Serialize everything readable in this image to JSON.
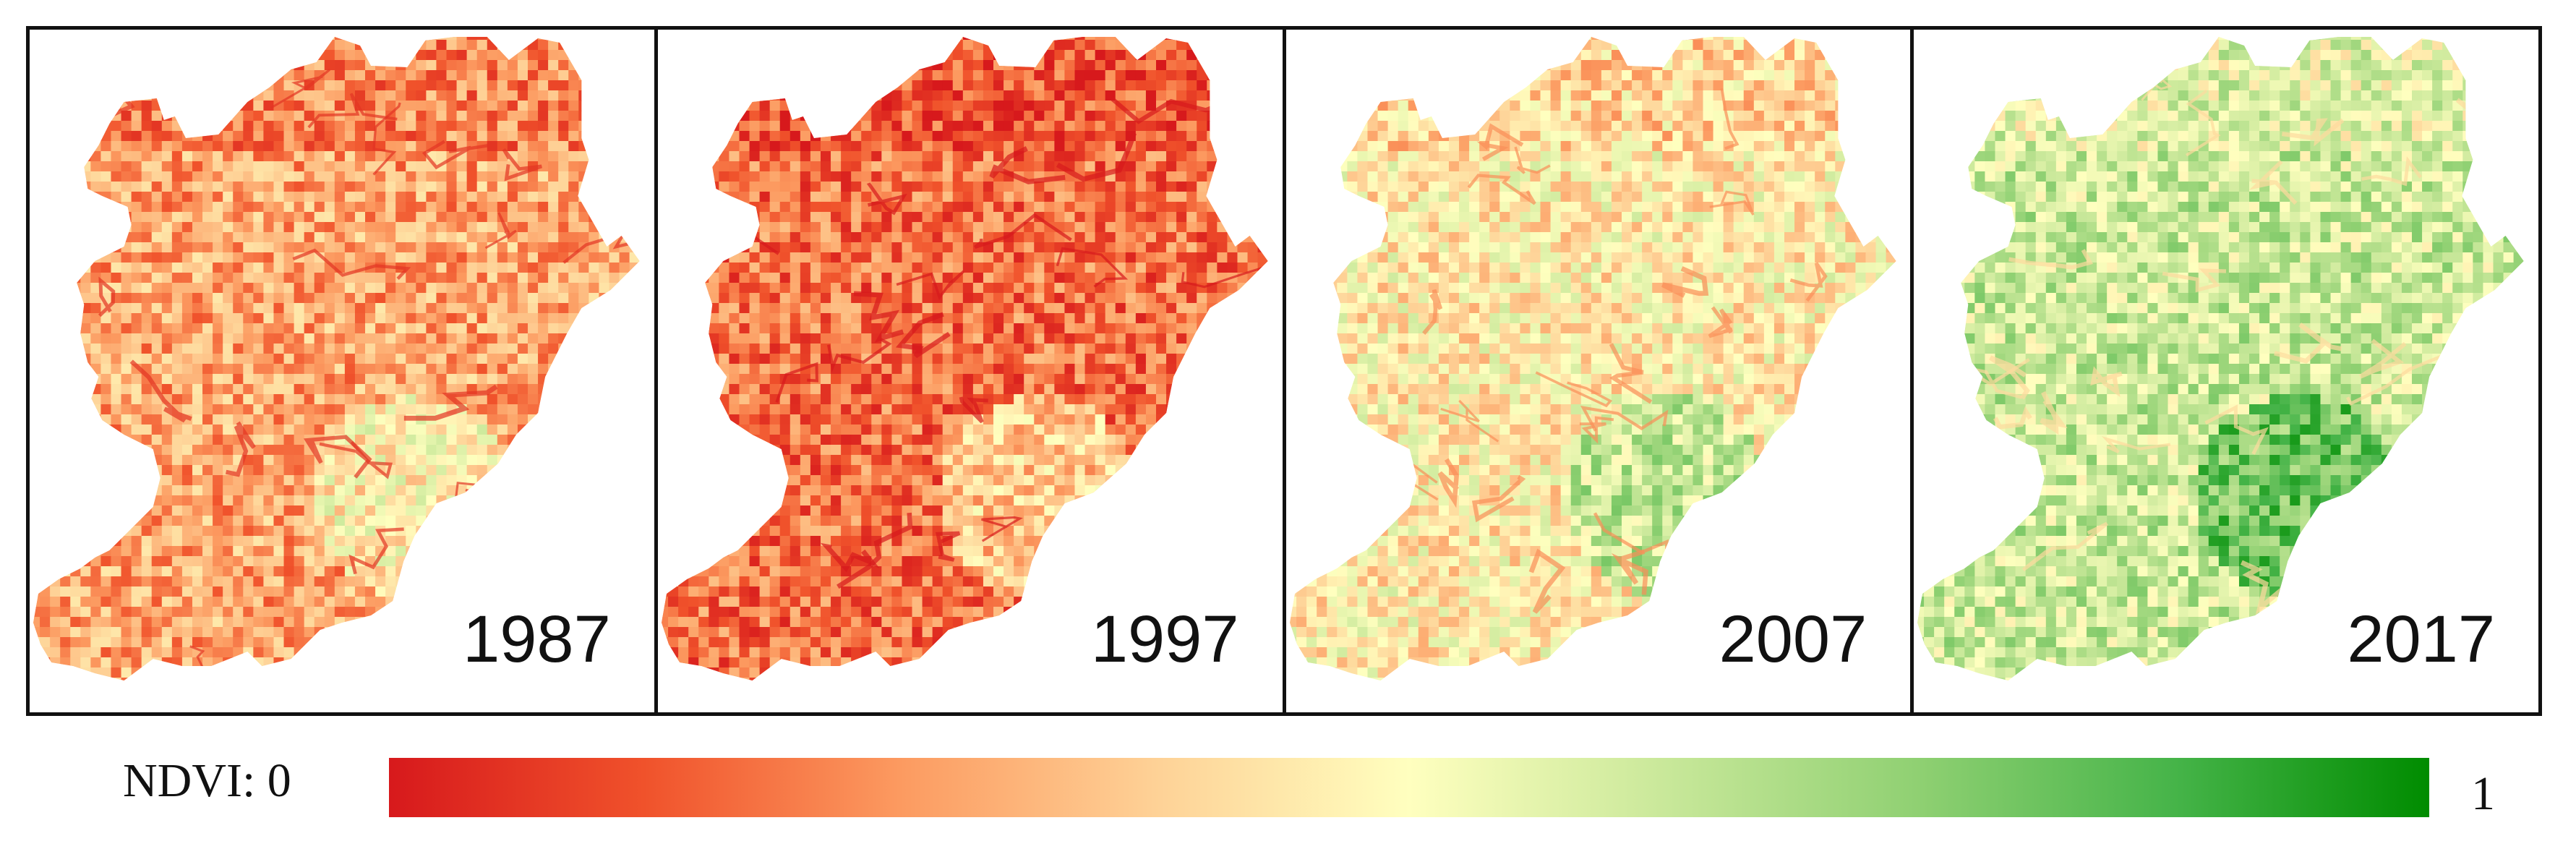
{
  "panels": [
    {
      "year": "1987",
      "mean_ndvi_visual": 0.28
    },
    {
      "year": "1997",
      "mean_ndvi_visual": 0.18
    },
    {
      "year": "2007",
      "mean_ndvi_visual": 0.45
    },
    {
      "year": "2017",
      "mean_ndvi_visual": 0.62
    }
  ],
  "legend": {
    "label": "NDVI: 0",
    "max_label": "1",
    "colors": [
      "#d7191c",
      "#f0522b",
      "#fc9a60",
      "#fed196",
      "#ffffbf",
      "#c9e89a",
      "#8fd072",
      "#46b449",
      "#008c00"
    ]
  }
}
